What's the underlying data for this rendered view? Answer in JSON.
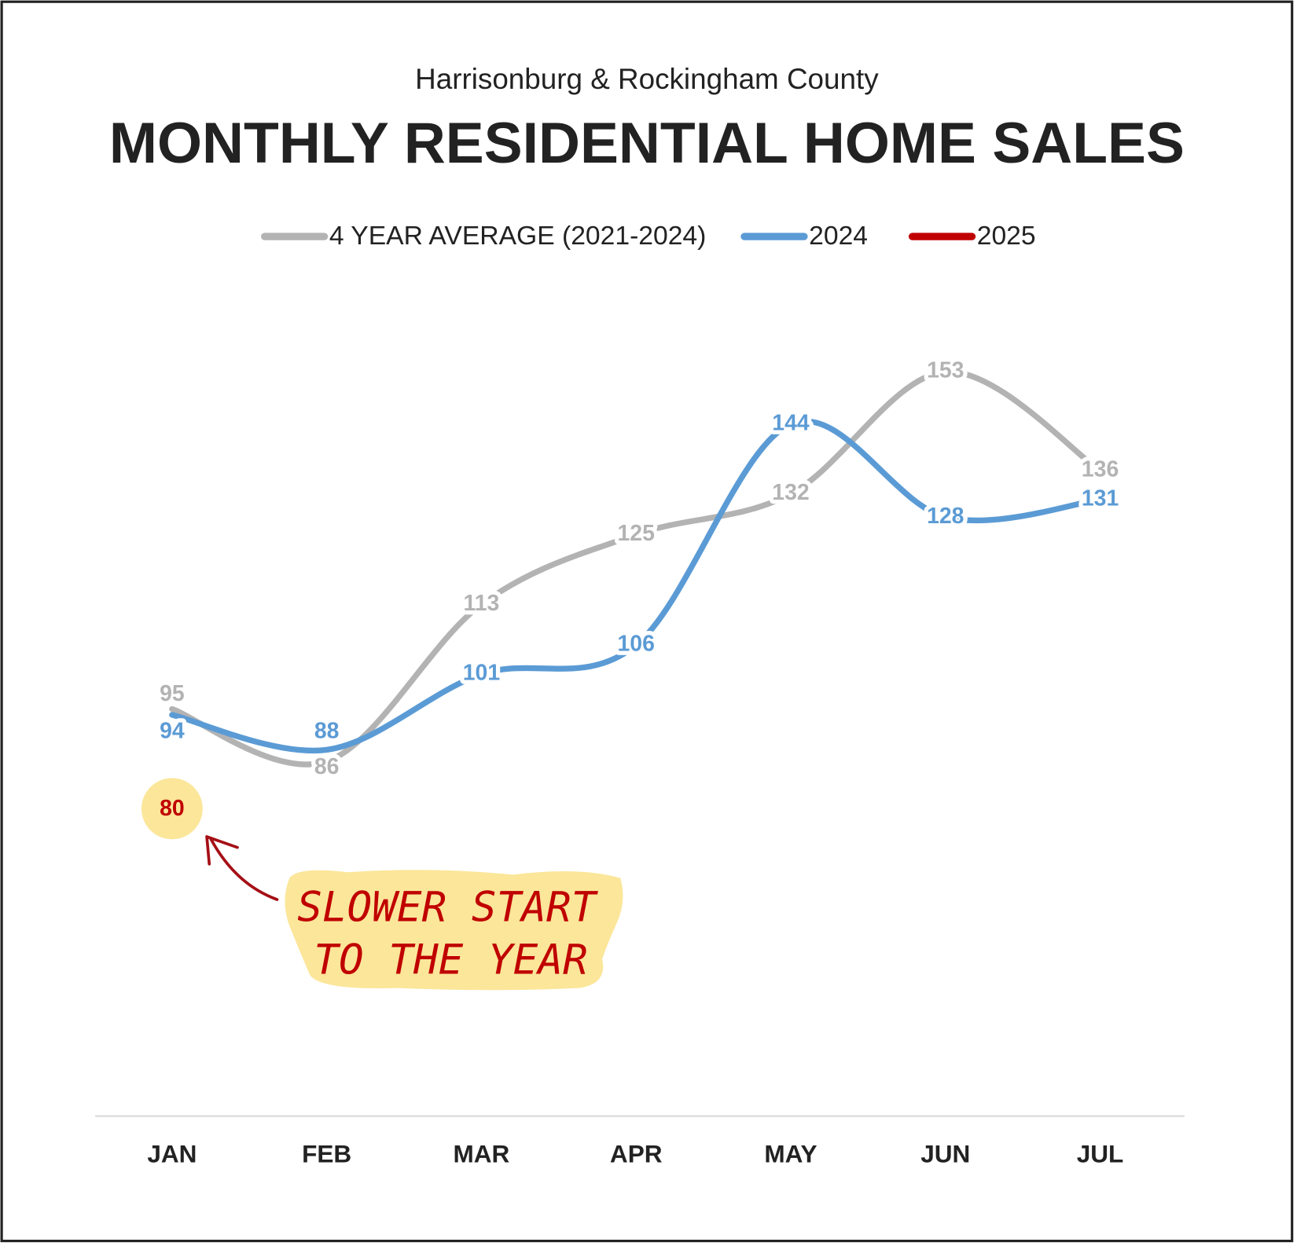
{
  "chart_data": {
    "type": "line",
    "subtitle": "Harrisonburg & Rockingham County",
    "title": "MONTHLY RESIDENTIAL HOME SALES",
    "categories": [
      "JAN",
      "FEB",
      "MAR",
      "APR",
      "MAY",
      "JUN",
      "JUL"
    ],
    "series": [
      {
        "name": "4 YEAR AVERAGE (2021-2024)",
        "color": "#b3b3b3",
        "values": [
          95,
          86,
          113,
          125,
          132,
          153,
          136
        ]
      },
      {
        "name": "2024",
        "color": "#5b9bd5",
        "values": [
          94,
          88,
          101,
          106,
          144,
          128,
          131
        ]
      },
      {
        "name": "2025",
        "color": "#c00000",
        "values": [
          80,
          null,
          null,
          null,
          null,
          null,
          null
        ]
      }
    ],
    "ylim": [
      25,
      170
    ],
    "annotation": [
      "SLOWER START",
      "TO THE YEAR"
    ]
  }
}
